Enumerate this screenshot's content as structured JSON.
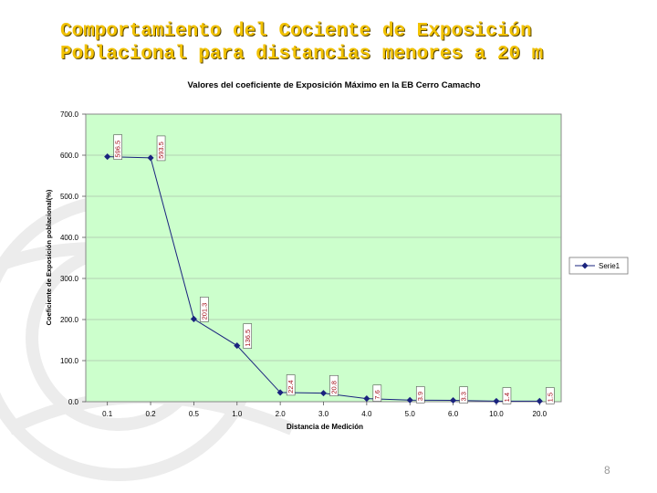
{
  "slide": {
    "title_line1": "Comportamiento del Cociente de Exposición",
    "title_line2": "Poblacional para distancias menores a 20 m",
    "page_number": "8",
    "title_color": "#f2c200"
  },
  "chart_data": {
    "type": "line",
    "title": "Valores del coeficiente de Exposición Máximo en la EB Cerro Camacho",
    "xlabel": "Distancia de Medición",
    "ylabel": "Coeficiente de Exposición poblacional(%)",
    "categories": [
      "0.1",
      "0.2",
      "0.5",
      "1.0",
      "2.0",
      "3.0",
      "4.0",
      "5.0",
      "6.0",
      "10.0",
      "20.0"
    ],
    "series": [
      {
        "name": "Serie1",
        "values": [
          596.5,
          593.5,
          201.3,
          136.5,
          22.4,
          20.8,
          7.6,
          3.9,
          3.3,
          1.4,
          1.5
        ],
        "labels": [
          "596.5",
          "593.5",
          "201.3",
          "136.5",
          "22.4",
          "20.8",
          "7.6",
          "3.9",
          "3.3",
          "1.4",
          "1.5"
        ],
        "color": "#1a237e"
      }
    ],
    "yticks": [
      "0.0",
      "100.0",
      "200.0",
      "300.0",
      "400.0",
      "500.0",
      "600.0",
      "700.0"
    ],
    "ylim": [
      0,
      700
    ],
    "grid": true,
    "legend_position": "right",
    "plot_background": "#ccffcc",
    "label_color": "#a3101a"
  }
}
